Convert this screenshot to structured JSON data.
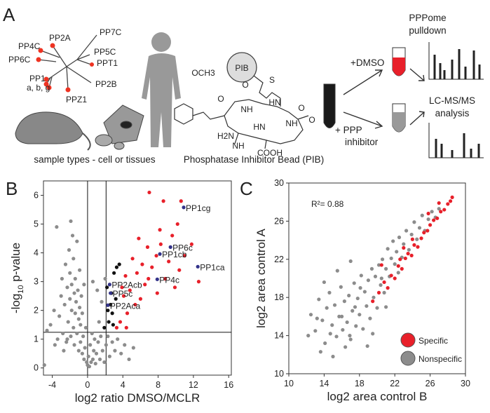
{
  "panel_a": {
    "letter": "A",
    "tree_labels": [
      "PP7C",
      "PP2A",
      "PP4C",
      "PP6C",
      "PP5C",
      "PPT1",
      "PP1",
      "a, b, g",
      "PP2B",
      "PPZ1"
    ],
    "samples_caption": "sample types - cell or tissues",
    "bead": "PIB",
    "molecule_labels": [
      "S",
      "O",
      "HN",
      "O",
      "NH",
      "OCH3",
      "NH",
      "HN",
      "H2N",
      "NH",
      "COOH",
      "O",
      "O"
    ],
    "bead_caption": "Phosphatase Inhibitor Bead (PIB)",
    "pulldown_title": "PPPome",
    "pulldown_subtitle": "pulldown",
    "dmso": "+DMSO",
    "inhibitor_line1": "+ PPP",
    "inhibitor_line2": "inhibitor",
    "analysis_line1": "LC-MS/MS",
    "analysis_line2": "analysis"
  },
  "chart_data": [
    {
      "type": "scatter",
      "panel": "B",
      "x_label": "log2 ratio DMSO/MCLR",
      "y_label": {
        "prefix": "-log",
        "sub": "10",
        "suffix": " p-value"
      },
      "xlim": [
        -5,
        16.3
      ],
      "ylim": [
        -0.25,
        6.5
      ],
      "xticks": [
        -4,
        0,
        4,
        8,
        12,
        16
      ],
      "yticks": [
        0,
        1,
        2,
        3,
        4,
        5,
        6
      ],
      "reference_lines": {
        "x": [
          0,
          2.1
        ],
        "y": [
          1.24
        ]
      },
      "series": [
        {
          "color": "#8c8c8c",
          "x": [
            -4.6,
            -4.2,
            -3.8,
            -3.5,
            -3.2,
            -3.0,
            -2.9,
            -2.8,
            -2.6,
            -2.5,
            -2.4,
            -2.3,
            -2.2,
            -2.1,
            -2.0,
            -2.0,
            -1.9,
            -1.8,
            -1.8,
            -1.7,
            -1.6,
            -1.6,
            -1.5,
            -1.5,
            -1.4,
            -1.4,
            -1.3,
            -1.2,
            -1.2,
            -1.1,
            -1.0,
            -1.0,
            -0.9,
            -0.9,
            -0.8,
            -0.8,
            -0.7,
            -0.6,
            -0.6,
            -0.5,
            -0.4,
            -0.4,
            -0.3,
            -0.2,
            -0.1,
            0.0,
            0.1,
            0.2,
            0.3,
            0.4,
            0.5,
            0.6,
            0.7,
            0.8,
            0.9,
            1.0,
            1.2,
            1.4,
            1.5,
            1.7,
            1.9,
            2.1,
            2.3,
            2.5,
            2.8,
            3.1,
            3.4,
            3.8,
            4.2,
            4.7,
            5.2,
            -3.4,
            -2.7,
            -4.9,
            1.1,
            1.6,
            0.6,
            -1.9,
            -2.3,
            -3.7,
            2.0,
            1.3
          ],
          "values": [
            1.3,
            1.5,
            2.0,
            4.9,
            1.8,
            2.5,
            3.1,
            1.2,
            2.2,
            3.6,
            0.9,
            2.8,
            1.6,
            4.1,
            2.4,
            3.3,
            1.1,
            2.0,
            2.9,
            4.6,
            1.4,
            3.8,
            2.6,
            0.8,
            1.9,
            3.1,
            2.3,
            1.2,
            4.4,
            2.7,
            0.6,
            1.7,
            3.4,
            2.1,
            0.9,
            1.5,
            2.5,
            0.5,
            1.9,
            1.1,
            0.3,
            2.9,
            0.7,
            1.4,
            0.2,
            0.1,
            0.4,
            0.05,
            0.8,
            0.2,
            1.2,
            0.3,
            0.6,
            1.0,
            0.15,
            0.5,
            0.9,
            0.3,
            1.1,
            0.6,
            0.2,
            0.8,
            1.1,
            0.4,
            0.9,
            0.6,
            1.0,
            0.5,
            0.8,
            0.3,
            0.7,
            1.0,
            0.6,
            0.1,
            2.7,
            2.3,
            3.0,
            5.1,
            1.0,
            0.8,
            3.1,
            1.6
          ]
        },
        {
          "color": "#e8202a",
          "x": [
            7,
            8.6,
            10.6,
            10.2,
            8.2,
            9.6,
            6.8,
            11.8,
            7.8,
            9.2,
            10.4,
            6.2,
            5.6,
            8.8,
            6.5,
            12.6,
            5.1,
            4.3,
            7.3,
            9.9,
            6.0,
            4.8,
            5.4,
            4.1,
            3.7,
            4.5,
            3.3,
            3.9,
            5.8,
            11.0,
            7.9,
            4.4,
            6.9,
            8.3
          ],
          "values": [
            6.1,
            5.8,
            5.8,
            5.0,
            4.8,
            4.6,
            4.2,
            4.3,
            3.9,
            3.7,
            3.4,
            3.6,
            3.3,
            3.1,
            2.9,
            3.0,
            3.8,
            3.2,
            3.5,
            2.8,
            2.4,
            2.7,
            2.2,
            2.5,
            1.6,
            1.9,
            1.4,
            2.8,
            4.5,
            3.9,
            2.6,
            1.4,
            3.1,
            4.3
          ]
        },
        {
          "color": "#111111",
          "x": [
            2.2,
            2.6,
            2.4,
            3.0,
            3.3,
            2.8,
            3.2,
            2.3,
            1.9,
            3.6,
            2.7,
            2.9
          ],
          "values": [
            2.8,
            2.2,
            1.6,
            3.3,
            3.5,
            1.9,
            2.4,
            2.0,
            1.4,
            3.6,
            2.6,
            1.5
          ]
        },
        {
          "color": "#33338a",
          "x": [
            10.9,
            9.4,
            8.2,
            12.5,
            7.9,
            2.5,
            2.6,
            2.3
          ],
          "values": [
            5.58,
            4.2,
            3.96,
            3.52,
            3.08,
            2.9,
            2.6,
            2.18
          ],
          "point_labels": [
            "PP1cg",
            "PP6c",
            "PP1cb",
            "PP1ca",
            "PP4c",
            "PP2Acb",
            "PP5c",
            "PP2Aca"
          ]
        }
      ]
    },
    {
      "type": "scatter",
      "panel": "C",
      "x_label": "log2 area control B",
      "y_label": "log2 area control A",
      "annotation": "R²= 0.88",
      "xlim": [
        10,
        30
      ],
      "ylim": [
        10,
        30
      ],
      "xticks": [
        10,
        14,
        18,
        22,
        26,
        30
      ],
      "yticks": [
        10,
        14,
        18,
        22,
        26,
        30
      ],
      "legend": "lower right",
      "series": [
        {
          "name": "Nonspecific",
          "color": "#8c8c8c",
          "x": [
            12.5,
            13.0,
            13.4,
            13.8,
            14.1,
            14.3,
            14.6,
            14.9,
            15.2,
            15.4,
            15.7,
            15.9,
            16.1,
            16.3,
            16.6,
            16.8,
            17.0,
            17.2,
            17.4,
            17.6,
            17.8,
            18.0,
            18.2,
            18.4,
            18.6,
            18.8,
            19.0,
            19.2,
            19.4,
            19.6,
            19.8,
            20.0,
            20.2,
            20.4,
            20.6,
            20.8,
            21.0,
            21.2,
            21.4,
            21.6,
            21.8,
            22.0,
            22.2,
            22.5,
            22.8,
            23.0,
            23.3,
            23.6,
            23.9,
            24.2,
            24.5,
            24.8,
            25.1,
            25.4,
            25.8,
            26.2,
            26.6,
            27.0,
            13.6,
            15.0,
            16.4,
            12.2,
            14.0,
            15.5,
            17.0,
            19.5,
            18.9,
            21.0,
            16.0,
            17.5,
            20.5,
            22.4,
            18.1,
            14.7,
            13.2,
            16.9
          ],
          "values": [
            16.2,
            14.5,
            17.8,
            15.6,
            13.2,
            16.9,
            18.5,
            15.1,
            17.2,
            13.9,
            16.0,
            19.1,
            14.6,
            17.6,
            15.4,
            18.2,
            13.6,
            16.6,
            19.5,
            15.0,
            17.9,
            16.2,
            20.3,
            14.7,
            18.6,
            17.1,
            19.8,
            15.8,
            21.0,
            18.0,
            20.2,
            16.9,
            21.4,
            19.3,
            22.0,
            18.5,
            21.0,
            23.1,
            20.2,
            22.1,
            23.9,
            21.5,
            22.8,
            24.3,
            22.2,
            23.6,
            25.0,
            23.0,
            24.6,
            25.9,
            24.1,
            25.3,
            26.6,
            25.0,
            26.2,
            27.0,
            26.4,
            27.3,
            12.3,
            11.8,
            12.8,
            14.0,
            19.6,
            20.8,
            21.8,
            14.2,
            12.9,
            17.0,
            16.0,
            17.0,
            20.0,
            20.6,
            19.0,
            14.2,
            15.8,
            14.0
          ]
        },
        {
          "name": "Specific",
          "color": "#e8202a",
          "x": [
            19.5,
            20.2,
            20.8,
            21.2,
            21.6,
            22.0,
            22.4,
            22.8,
            23.2,
            23.5,
            23.9,
            24.2,
            24.6,
            25.0,
            25.3,
            25.7,
            26.0,
            26.4,
            26.8,
            27.2,
            27.6,
            28.0,
            28.3,
            28.5,
            24.0,
            22.6,
            20.5,
            25.8,
            27.0,
            23.0
          ],
          "values": [
            17.6,
            18.5,
            19.6,
            19.0,
            20.3,
            20.0,
            21.3,
            21.0,
            22.1,
            22.6,
            22.4,
            23.5,
            23.3,
            24.2,
            24.8,
            25.0,
            25.6,
            26.1,
            26.3,
            27.0,
            27.2,
            27.8,
            28.1,
            28.5,
            24.1,
            22.0,
            21.4,
            26.8,
            27.9,
            23.2
          ]
        }
      ]
    }
  ]
}
